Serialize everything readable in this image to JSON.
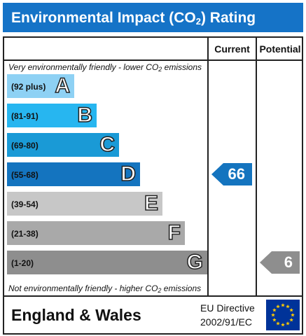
{
  "header": {
    "title_prefix": "Environmental Impact (CO",
    "title_sub": "2",
    "title_suffix": ") Rating"
  },
  "columns": {
    "current": "Current",
    "potential": "Potential"
  },
  "notes": {
    "top_prefix": "Very environmentally friendly - lower CO",
    "top_sub": "2",
    "top_suffix": " emissions",
    "bottom_prefix": "Not environmentally friendly - higher CO",
    "bottom_sub": "2",
    "bottom_suffix": " emissions"
  },
  "bands": [
    {
      "range": "(92 plus)",
      "letter": "A",
      "color": "#8ed1f4"
    },
    {
      "range": "(81-91)",
      "letter": "B",
      "color": "#27b6f0"
    },
    {
      "range": "(69-80)",
      "letter": "C",
      "color": "#1a9ad6"
    },
    {
      "range": "(55-68)",
      "letter": "D",
      "color": "#1474bf"
    },
    {
      "range": "(39-54)",
      "letter": "E",
      "color": "#c7c7c7"
    },
    {
      "range": "(21-38)",
      "letter": "F",
      "color": "#a9a9a9"
    },
    {
      "range": "(1-20)",
      "letter": "G",
      "color": "#8e8e8e"
    }
  ],
  "ratings": {
    "current": {
      "value": "66",
      "band": "D",
      "color": "#1474bf"
    },
    "potential": {
      "value": "6",
      "band": "G",
      "color": "#8e8e8e"
    }
  },
  "footer": {
    "region": "England & Wales",
    "directive_line1": "EU Directive",
    "directive_line2": "2002/91/EC",
    "flag_color": "#003399",
    "star_color": "#ffcc00"
  }
}
